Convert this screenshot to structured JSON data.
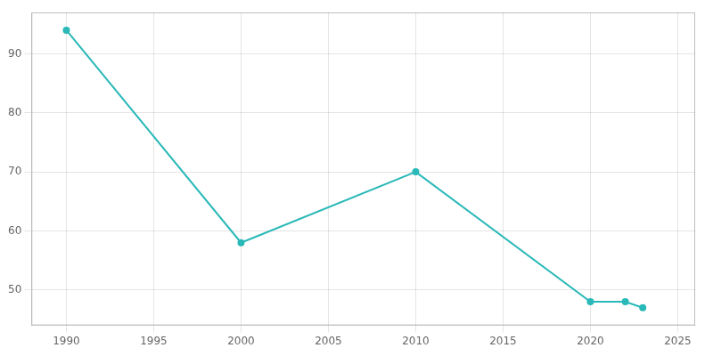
{
  "chart_data": {
    "type": "line",
    "x": [
      1990,
      2000,
      2010,
      2020,
      2022,
      2023
    ],
    "values": [
      94,
      58,
      70,
      48,
      48,
      47
    ],
    "color": "#2ab8b8",
    "marker": "circle",
    "xlim": [
      1988,
      2026
    ],
    "ylim": [
      44,
      97
    ],
    "xticks": [
      1990,
      1995,
      2000,
      2005,
      2010,
      2015,
      2020,
      2025
    ],
    "yticks": [
      50,
      60,
      70,
      80,
      90
    ],
    "grid": true
  }
}
